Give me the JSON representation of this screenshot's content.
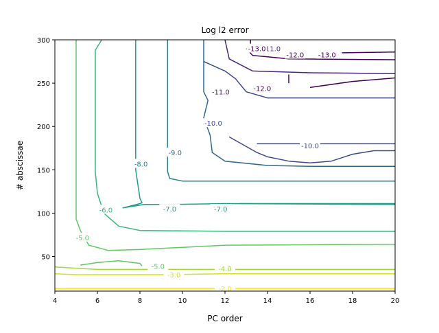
{
  "chart_data": {
    "type": "contour",
    "title": "Log l2 error",
    "xlabel": "PC order",
    "ylabel": "# abscissae",
    "xlim": [
      4,
      20
    ],
    "ylim": [
      10,
      300
    ],
    "xticks": [
      4,
      6,
      8,
      10,
      12,
      14,
      16,
      18,
      20
    ],
    "yticks": [
      50,
      100,
      150,
      200,
      250,
      300
    ],
    "grid": false,
    "colormap": "viridis",
    "levels": [
      {
        "value": -2.0,
        "label": "-2.0",
        "color": "#fde725",
        "lines": [
          [
            [
              4,
              13
            ],
            [
              20,
              13
            ]
          ]
        ],
        "labels": [
          {
            "x": 12.0,
            "y": 13
          }
        ]
      },
      {
        "value": -3.0,
        "label": "-3.0",
        "color": "#d2e21b",
        "lines": [
          [
            [
              4,
              30
            ],
            [
              5,
              29
            ],
            [
              9,
              29
            ],
            [
              12,
              30
            ],
            [
              20,
              30
            ]
          ]
        ],
        "labels": [
          {
            "x": 9.6,
            "y": 29
          }
        ]
      },
      {
        "value": -4.0,
        "label": "-4.0",
        "color": "#a0da39",
        "lines": [
          [
            [
              4,
              38
            ],
            [
              6,
              35
            ],
            [
              20,
              35
            ]
          ]
        ],
        "labels": [
          {
            "x": 12.0,
            "y": 36
          }
        ]
      },
      {
        "value": -5.0,
        "label": "-5.0",
        "color": "#5ec962",
        "lines": [
          [
            [
              5.0,
              300
            ],
            [
              5.0,
              93
            ],
            [
              5.2,
              80
            ],
            [
              5.6,
              63
            ],
            [
              6.5,
              57
            ],
            [
              8.0,
              58
            ],
            [
              12,
              63
            ],
            [
              20,
              64
            ]
          ],
          [
            [
              5.2,
              40
            ],
            [
              6,
              43
            ],
            [
              7,
              45
            ],
            [
              8,
              42
            ],
            [
              8.1,
              39
            ]
          ]
        ],
        "labels": [
          {
            "x": 5.3,
            "y": 72
          },
          {
            "x": 8.85,
            "y": 39
          }
        ]
      },
      {
        "value": -6.0,
        "label": "-6.0",
        "color": "#35b779",
        "lines": [
          [
            [
              6.2,
              300
            ],
            [
              5.9,
              288
            ],
            [
              5.9,
              148
            ],
            [
              6.0,
              123
            ],
            [
              6.3,
              100
            ],
            [
              7.0,
              85
            ],
            [
              8,
              80
            ],
            [
              12,
              79
            ],
            [
              20,
              79
            ]
          ]
        ],
        "labels": [
          {
            "x": 6.4,
            "y": 104
          }
        ]
      },
      {
        "value": -7.0,
        "label": "-7.0",
        "color": "#1f9e89",
        "lines": [
          [
            [
              7.8,
              300
            ],
            [
              7.8,
              150
            ],
            [
              8,
              117
            ],
            [
              8.1,
              112
            ],
            [
              8,
              111
            ],
            [
              7.2,
              106
            ],
            [
              8.2,
              110
            ],
            [
              9.4,
              110
            ],
            [
              9.4,
              110
            ],
            [
              12,
              111
            ],
            [
              20,
              110
            ]
          ],
          [
            [
              12.7,
              111
            ],
            [
              20,
              111
            ]
          ]
        ],
        "labels": [
          {
            "x": 9.4,
            "y": 105
          },
          {
            "x": 11.8,
            "y": 105
          }
        ]
      },
      {
        "value": -8.0,
        "label": "-8.0",
        "color": "#26828e",
        "lines": [
          [
            [
              9.3,
              300
            ],
            [
              9.3,
              148
            ],
            [
              9.4,
              140
            ],
            [
              10,
              137
            ],
            [
              12,
              137
            ],
            [
              20,
              137
            ]
          ]
        ],
        "labels": [
          {
            "x": 8.05,
            "y": 157
          }
        ]
      },
      {
        "value": -9.0,
        "label": "-9.0",
        "color": "#31688e",
        "lines": [
          [
            [
              11.0,
              300
            ],
            [
              11.0,
              240
            ],
            [
              11.2,
              230
            ],
            [
              11.0,
              210
            ],
            [
              11.3,
              190
            ],
            [
              11.4,
              170
            ],
            [
              12,
              160
            ],
            [
              14,
              155
            ],
            [
              16,
              154
            ],
            [
              20,
              154
            ]
          ]
        ],
        "labels": [
          {
            "x": 9.65,
            "y": 170
          }
        ]
      },
      {
        "value": -10.0,
        "label": "-10.0",
        "color": "#3e4989",
        "lines": [
          [
            [
              11.0,
              275
            ],
            [
              12.0,
              264
            ],
            [
              12.5,
              255
            ],
            [
              13,
              240
            ],
            [
              14,
              233
            ],
            [
              16,
              233
            ],
            [
              20,
              233
            ]
          ],
          [
            [
              12.2,
              188
            ],
            [
              13.5,
              170
            ],
            [
              14,
              165
            ],
            [
              15,
              160
            ],
            [
              16,
              158
            ],
            [
              17,
              160
            ],
            [
              18,
              168
            ],
            [
              19,
              172
            ],
            [
              20,
              172
            ]
          ],
          [
            [
              13.5,
              180
            ],
            [
              20,
              180
            ]
          ]
        ],
        "labels": [
          {
            "x": 11.45,
            "y": 204
          },
          {
            "x": 16.0,
            "y": 178
          }
        ]
      },
      {
        "value": -11.0,
        "label": "-11.0",
        "color": "#482878",
        "lines": [
          [
            [
              12.0,
              300
            ],
            [
              12.2,
              278
            ],
            [
              13.3,
              264
            ],
            [
              16,
              262
            ],
            [
              20,
              261
            ]
          ]
        ],
        "labels": [
          {
            "x": 11.8,
            "y": 240
          },
          {
            "x": 14.2,
            "y": 290
          }
        ]
      },
      {
        "value": -12.0,
        "label": "-12.0",
        "color": "#440154",
        "lines": [
          [
            [
              13.0,
              290
            ],
            [
              13.3,
              282
            ],
            [
              15,
              278
            ],
            [
              20,
              277
            ]
          ],
          [
            [
              15,
              250
            ],
            [
              15,
              260
            ]
          ],
          [
            [
              16,
              245
            ],
            [
              18,
              252
            ],
            [
              20,
              256
            ]
          ]
        ],
        "labels": [
          {
            "x": 15.3,
            "y": 283
          },
          {
            "x": 13.75,
            "y": 244
          }
        ]
      },
      {
        "value": -13.0,
        "label": "-13.0",
        "color": "#440154",
        "lines": [
          [
            [
              13.2,
              300
            ],
            [
              13.2,
              285
            ]
          ],
          [
            [
              17.5,
              285
            ],
            [
              20,
              286
            ]
          ]
        ],
        "labels": [
          {
            "x": 13.5,
            "y": 290
          },
          {
            "x": 16.8,
            "y": 283
          }
        ]
      }
    ]
  }
}
